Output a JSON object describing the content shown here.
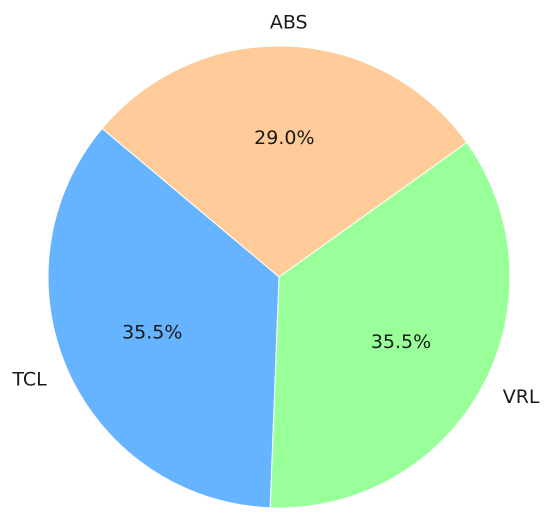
{
  "chart_data": {
    "type": "pie",
    "categories": [
      "ABS",
      "VRL",
      "TCL"
    ],
    "values": [
      29.0,
      35.5,
      35.5
    ],
    "percent_labels": [
      "29.0%",
      "35.5%",
      "35.5%"
    ],
    "colors": [
      "#ffcc99",
      "#99ff99",
      "#66b3ff"
    ],
    "start_angle_deg": 140,
    "direction": "clockwise",
    "legend": "none",
    "title": ""
  }
}
